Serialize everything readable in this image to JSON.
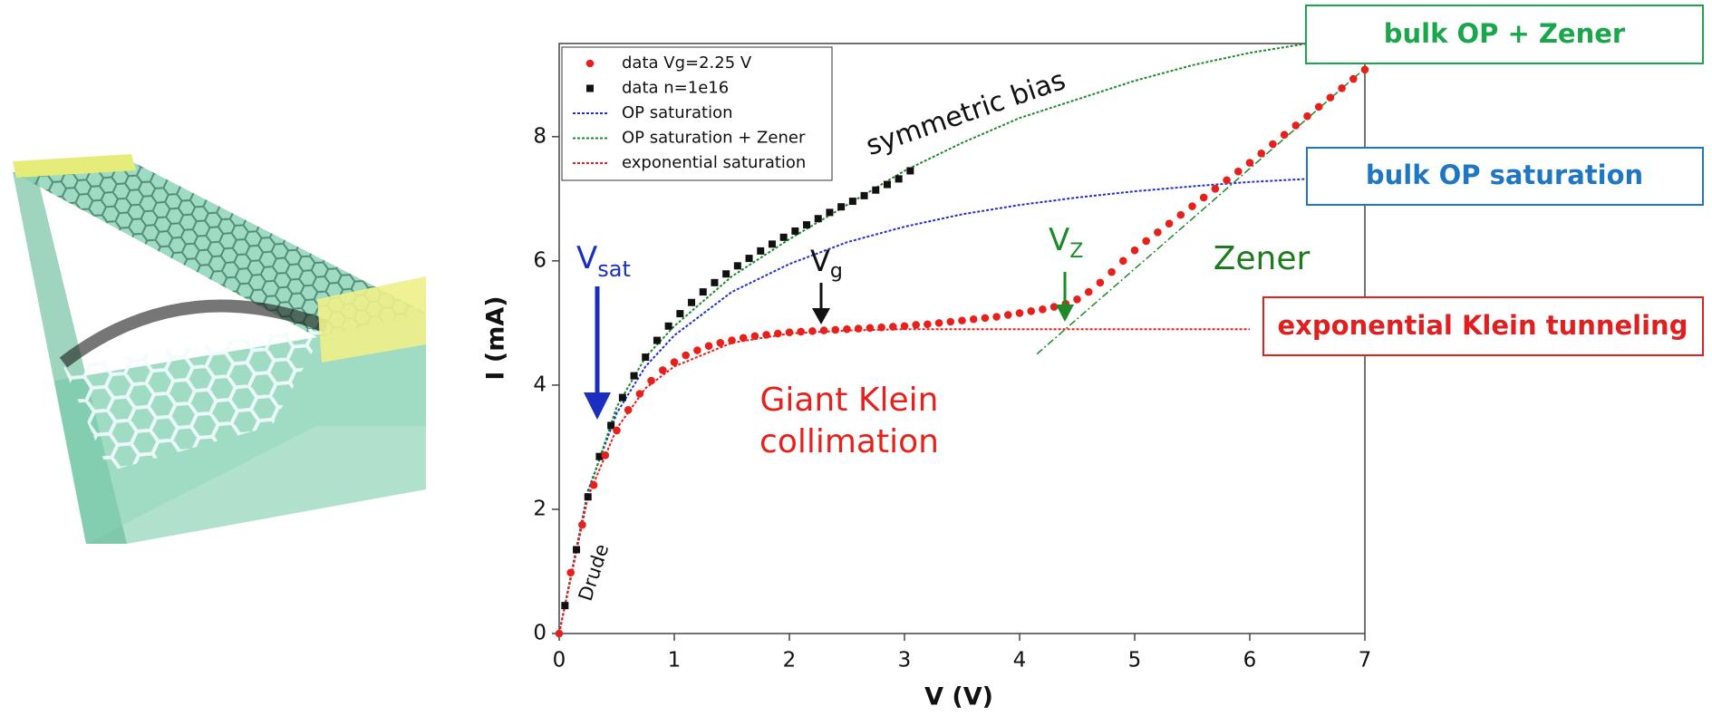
{
  "chart_data": {
    "type": "scatter",
    "x_label": "V (V)",
    "y_label": "I (mA)",
    "xlim": [
      0,
      7
    ],
    "xticks": [
      0,
      1,
      2,
      3,
      4,
      5,
      6,
      7
    ],
    "ylim": [
      0,
      9.5
    ],
    "yticks": [
      0,
      2,
      4,
      6,
      8
    ],
    "legend": "top-left",
    "series": [
      {
        "name": "data Vg=2.25 V",
        "color": "#e8201c",
        "marker": "circle",
        "x": [
          0,
          0.1,
          0.2,
          0.3,
          0.4,
          0.5,
          0.6,
          0.7,
          0.8,
          0.9,
          1,
          1.1,
          1.2,
          1.3,
          1.4,
          1.5,
          1.6,
          1.7,
          1.8,
          1.9,
          2,
          2.1,
          2.2,
          2.3,
          2.4,
          2.5,
          2.6,
          2.7,
          2.8,
          2.9,
          3,
          3.1,
          3.2,
          3.3,
          3.4,
          3.5,
          3.6,
          3.7,
          3.8,
          3.9,
          4,
          4.1,
          4.2,
          4.3,
          4.4,
          4.5,
          4.6,
          4.7,
          4.8,
          4.9,
          5,
          5.1,
          5.2,
          5.3,
          5.4,
          5.5,
          5.6,
          5.7,
          5.8,
          5.9,
          6,
          6.1,
          6.2,
          6.3,
          6.4,
          6.5,
          6.6,
          6.7,
          6.8,
          6.9,
          7
        ],
        "values": [
          0,
          0.98,
          1.75,
          2.39,
          2.87,
          3.27,
          3.6,
          3.86,
          4.07,
          4.24,
          4.37,
          4.48,
          4.56,
          4.63,
          4.68,
          4.72,
          4.76,
          4.79,
          4.81,
          4.83,
          4.85,
          4.86,
          4.87,
          4.88,
          4.89,
          4.9,
          4.91,
          4.92,
          4.93,
          4.94,
          4.95,
          4.97,
          4.98,
          5.0,
          5.02,
          5.04,
          5.06,
          5.08,
          5.1,
          5.13,
          5.16,
          5.19,
          5.22,
          5.26,
          5.31,
          5.38,
          5.5,
          5.65,
          5.82,
          6.0,
          6.17,
          6.32,
          6.46,
          6.6,
          6.74,
          6.88,
          7.02,
          7.16,
          7.3,
          7.44,
          7.58,
          7.73,
          7.88,
          8.03,
          8.18,
          8.33,
          8.48,
          8.63,
          8.78,
          8.93,
          9.08
        ]
      },
      {
        "name": "data n=1e16",
        "color": "#111111",
        "marker": "square",
        "x": [
          0.05,
          0.15,
          0.25,
          0.35,
          0.45,
          0.55,
          0.65,
          0.75,
          0.85,
          0.95,
          1.05,
          1.15,
          1.25,
          1.35,
          1.45,
          1.55,
          1.65,
          1.75,
          1.85,
          1.95,
          2.05,
          2.15,
          2.25,
          2.35,
          2.45,
          2.55,
          2.65,
          2.75,
          2.85,
          2.95,
          3.05
        ],
        "values": [
          0.45,
          1.35,
          2.2,
          2.85,
          3.35,
          3.8,
          4.15,
          4.45,
          4.72,
          4.95,
          5.15,
          5.33,
          5.5,
          5.65,
          5.79,
          5.92,
          6.04,
          6.16,
          6.27,
          6.38,
          6.48,
          6.58,
          6.68,
          6.78,
          6.87,
          6.96,
          7.05,
          7.14,
          7.23,
          7.32,
          7.45
        ]
      },
      {
        "name": "OP saturation",
        "color": "#2030d0",
        "marker": "dotted-line",
        "x": [
          0,
          0.25,
          0.5,
          0.75,
          1,
          1.5,
          2,
          2.5,
          3,
          3.5,
          4,
          4.5,
          5,
          5.5,
          6,
          6.5
        ],
        "values": [
          0,
          2.3,
          3.55,
          4.3,
          4.8,
          5.5,
          5.95,
          6.3,
          6.55,
          6.75,
          6.9,
          7.02,
          7.12,
          7.2,
          7.27,
          7.32
        ]
      },
      {
        "name": "OP saturation + Zener",
        "color": "#1e8a2a",
        "marker": "dotted-line",
        "x": [
          0,
          0.25,
          0.5,
          0.75,
          1,
          1.5,
          2,
          2.5,
          3,
          3.5,
          4,
          4.5,
          5,
          5.5,
          6,
          6.5
        ],
        "values": [
          0,
          2.25,
          3.65,
          4.45,
          4.95,
          5.75,
          6.35,
          6.9,
          7.45,
          7.9,
          8.3,
          8.6,
          8.9,
          9.15,
          9.35,
          9.5
        ]
      },
      {
        "name": "exponential saturation",
        "color": "#e8201c",
        "marker": "dotted-line",
        "x": [
          0,
          0.25,
          0.5,
          0.75,
          1,
          1.5,
          2,
          2.5,
          3,
          4,
          5,
          6
        ],
        "values": [
          0,
          2.2,
          3.3,
          3.95,
          4.3,
          4.68,
          4.83,
          4.88,
          4.9,
          4.9,
          4.9,
          4.9
        ]
      }
    ],
    "zener_tangent": {
      "color": "#1e8a2a",
      "x": [
        4.15,
        7
      ],
      "values": [
        4.5,
        9.1
      ]
    },
    "annotations": {
      "symmetric_bias": "symmetric bias",
      "v_sat": {
        "text": "V",
        "sub": "sat"
      },
      "v_g": {
        "text": "V",
        "sub": "g"
      },
      "v_z": {
        "text": "V",
        "sub": "Z"
      },
      "zener": "Zener",
      "giant_klein": [
        "Giant Klein",
        "collimation"
      ],
      "drude": "Drude"
    },
    "callouts": {
      "bulk_op_zener": "bulk OP + Zener",
      "bulk_op_saturation": "bulk OP saturation",
      "exponential_klein": "exponential Klein tunneling"
    }
  }
}
